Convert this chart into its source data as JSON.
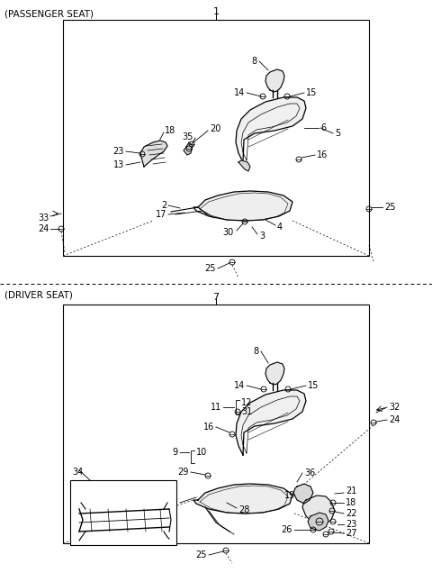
{
  "bg_color": "#ffffff",
  "section1_label": "(PASSENGER SEAT)",
  "section2_label": "(DRIVER SEAT)",
  "section1_number": "1",
  "section2_number": "7",
  "fig_width": 4.8,
  "fig_height": 6.46,
  "dpi": 100
}
